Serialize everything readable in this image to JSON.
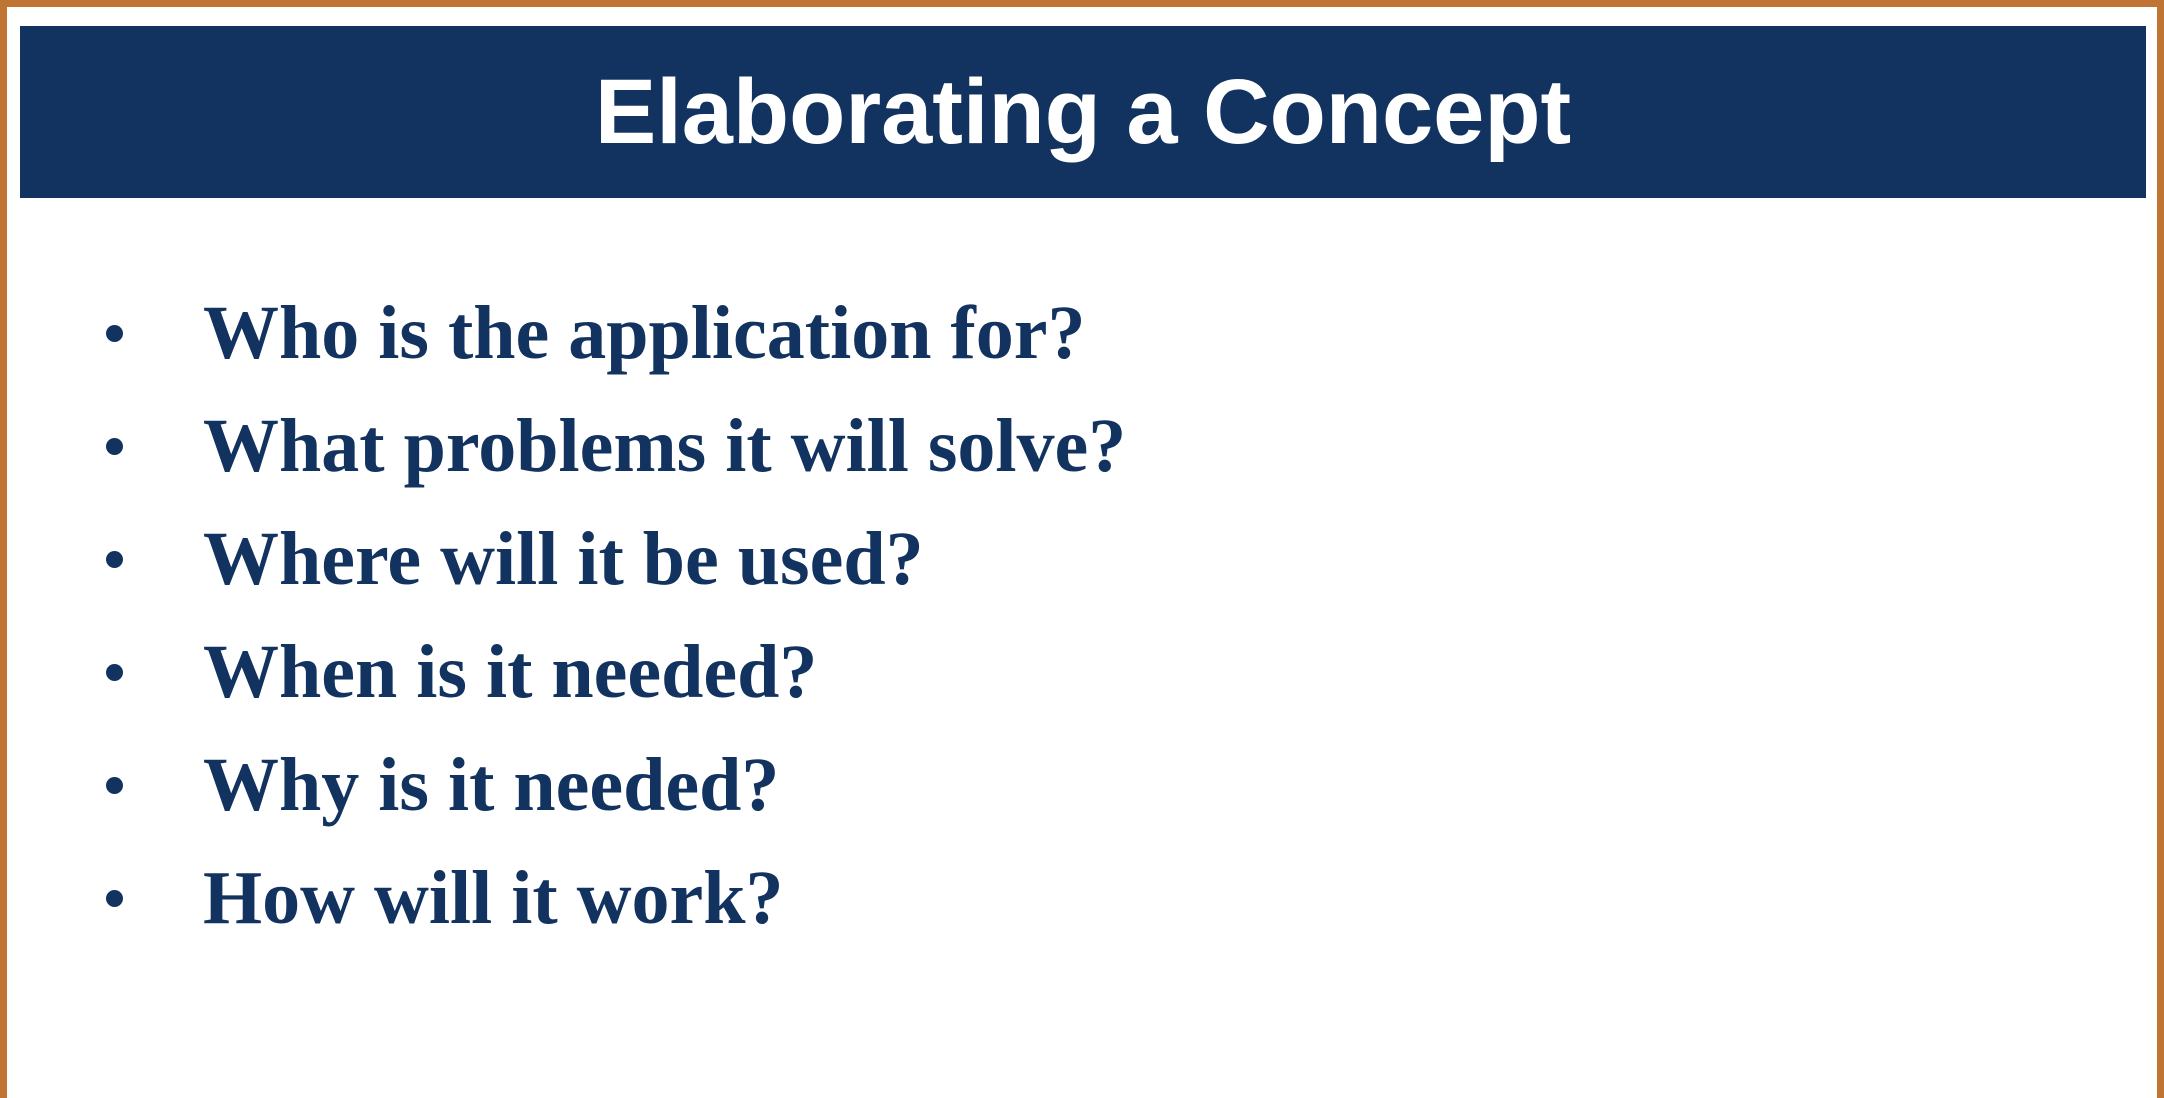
{
  "slide": {
    "title": "Elaborating a Concept",
    "bullets": [
      "Who is the application for?",
      "What problems it will solve?",
      "Where will it be used?",
      "When is it needed?",
      "Why is it needed?",
      "How will it work?"
    ],
    "colors": {
      "title_background": "#12325f",
      "title_text": "#ffffff",
      "bullet_text": "#12325f",
      "frame_border": "#c07433"
    }
  }
}
